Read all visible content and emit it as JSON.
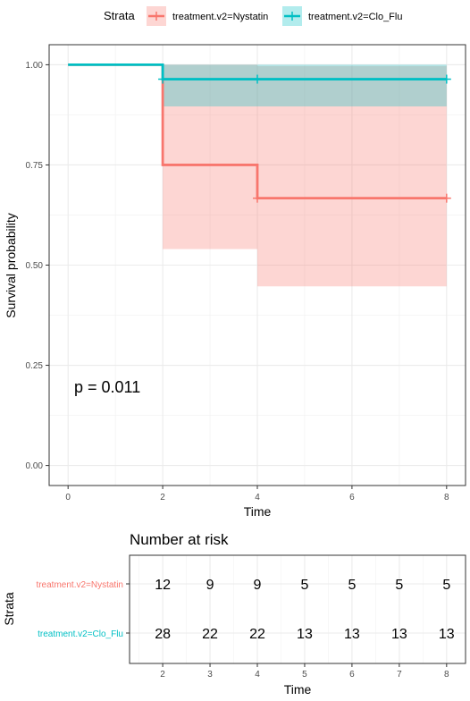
{
  "legend": {
    "title": "Strata",
    "position": "top",
    "items": [
      {
        "label": "treatment.v2=Nystatin",
        "color": "#F8766D"
      },
      {
        "label": "treatment.v2=Clo_Flu",
        "color": "#00BFC4"
      }
    ]
  },
  "chart_data": [
    {
      "type": "line",
      "subtype": "kaplan-meier",
      "title": "",
      "xlabel": "Time",
      "ylabel": "Survival probability",
      "xlim": [
        -0.4,
        8.4
      ],
      "ylim": [
        -0.05,
        1.05
      ],
      "xticks": [
        0,
        2,
        4,
        6,
        8
      ],
      "yticks": [
        0,
        0.25,
        0.5,
        0.75,
        1
      ],
      "ytick_labels": [
        "0.00",
        "0.25",
        "0.50",
        "0.75",
        "1.00"
      ],
      "grid": true,
      "annotation": "p = 0.011",
      "series": [
        {
          "name": "treatment.v2=Nystatin",
          "color": "#F8766D",
          "steps": [
            [
              0,
              1.0
            ],
            [
              2,
              0.75
            ],
            [
              4,
              0.667
            ]
          ],
          "end_x": 8,
          "ci": [
            {
              "x0": 2,
              "x1": 4,
              "lo": 0.54,
              "hi": 1.0
            },
            {
              "x0": 4,
              "x1": 8,
              "lo": 0.447,
              "hi": 0.997
            }
          ],
          "censor_x": [
            4,
            8
          ]
        },
        {
          "name": "treatment.v2=Clo_Flu",
          "color": "#00BFC4",
          "steps": [
            [
              0,
              1.0
            ],
            [
              2,
              0.964
            ]
          ],
          "end_x": 8,
          "ci": [
            {
              "x0": 2,
              "x1": 8,
              "lo": 0.896,
              "hi": 1.0
            }
          ],
          "censor_x": [
            2,
            4,
            8
          ]
        }
      ]
    },
    {
      "type": "table",
      "title": "Number at risk",
      "xlabel": "Time",
      "ylabel": "Strata",
      "xlim": [
        -0.4,
        8.4
      ],
      "times": [
        2,
        3,
        4,
        5,
        6,
        7,
        8
      ],
      "rows": [
        {
          "name": "treatment.v2=Nystatin",
          "color": "#F8766D",
          "values": [
            12,
            9,
            9,
            5,
            5,
            5,
            5
          ]
        },
        {
          "name": "treatment.v2=Clo_Flu",
          "color": "#00BFC4",
          "values": [
            28,
            22,
            22,
            13,
            13,
            13,
            13
          ]
        }
      ]
    }
  ]
}
